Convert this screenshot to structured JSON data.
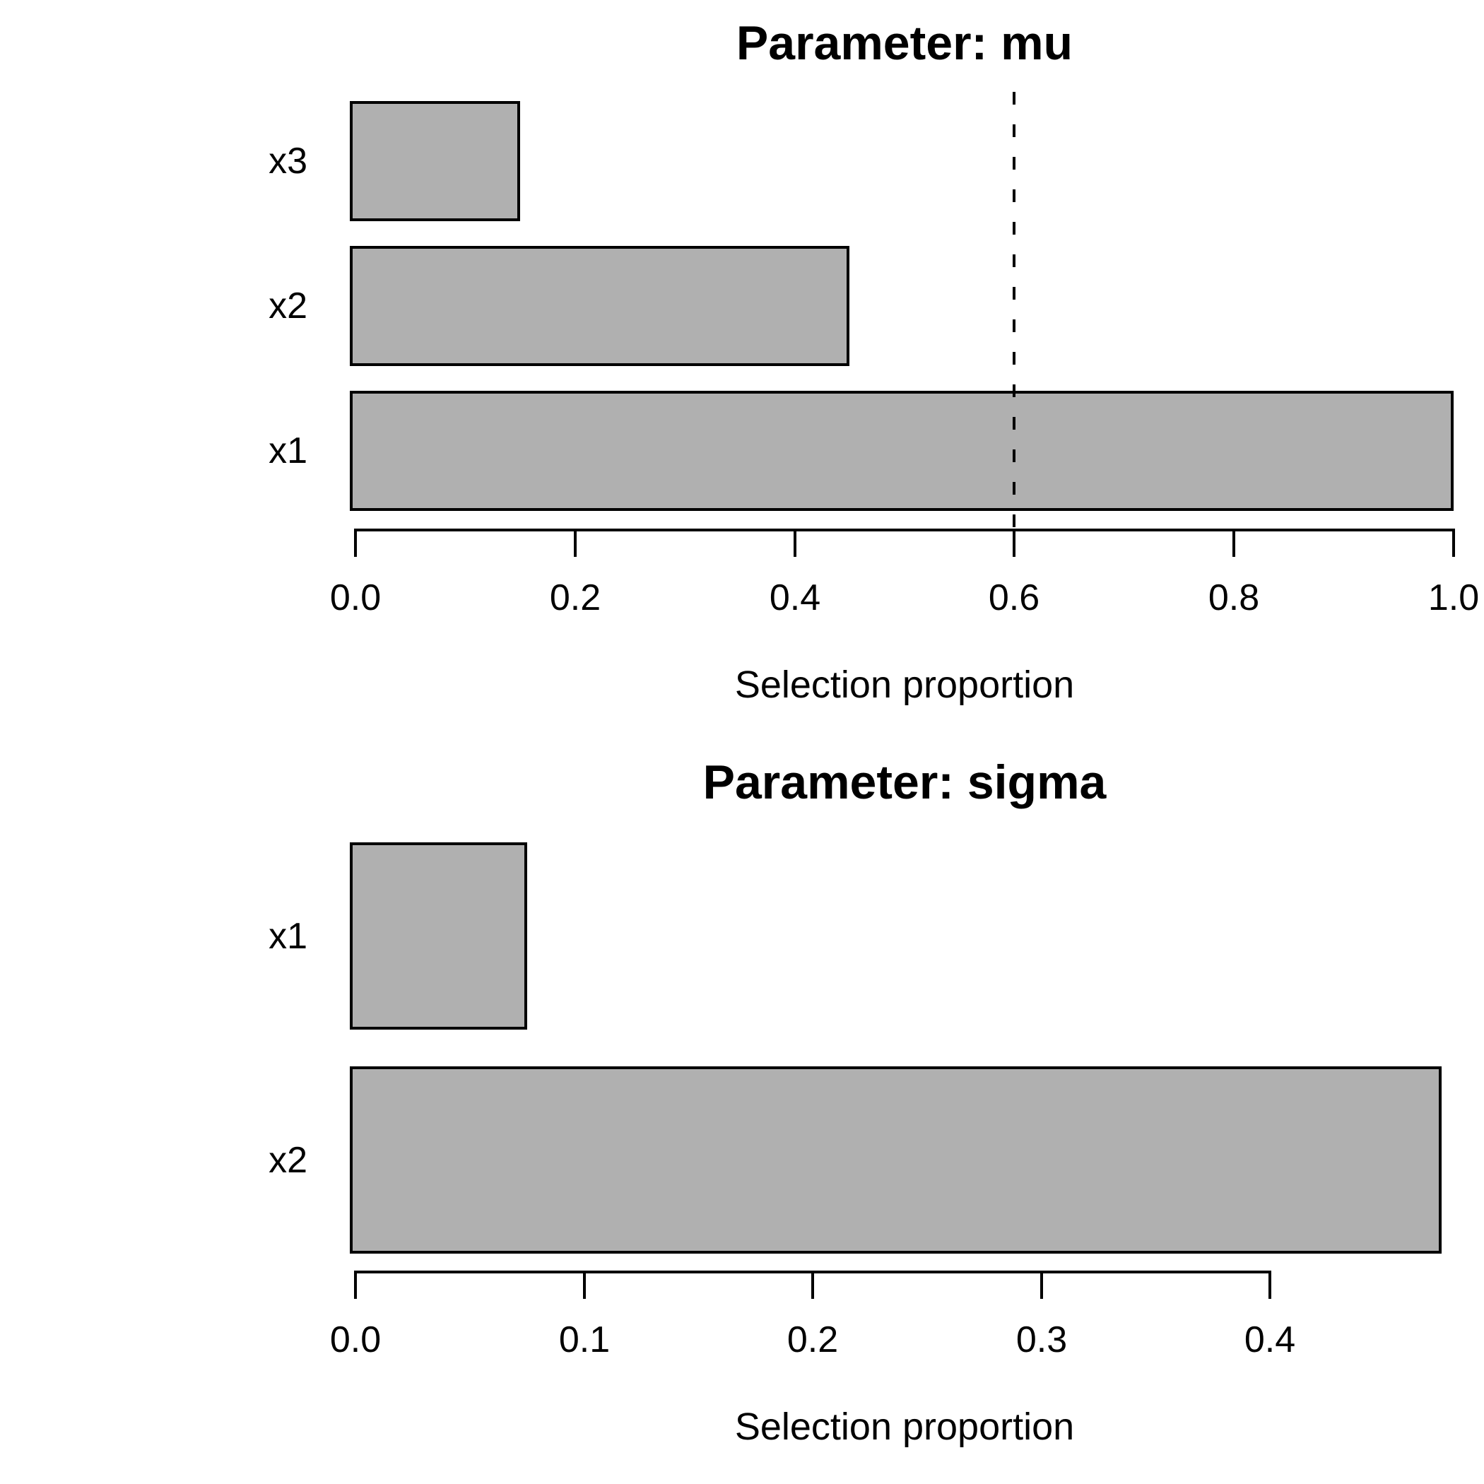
{
  "figure": {
    "background": "#ffffff",
    "text_color": "#000000"
  },
  "chart_data": [
    {
      "type": "bar",
      "orientation": "horizontal",
      "title": "Parameter: mu",
      "xlabel": "Selection proportion",
      "categories": [
        "x3",
        "x2",
        "x1"
      ],
      "values": [
        0.15,
        0.45,
        1.0
      ],
      "xticks": [
        0.0,
        0.2,
        0.4,
        0.6,
        0.8,
        1.0
      ],
      "xtick_labels": [
        "0.0",
        "0.2",
        "0.4",
        "0.6",
        "0.8",
        "1.0"
      ],
      "xlim": [
        0,
        1.0
      ],
      "grid": false,
      "legend": false,
      "annotations": [
        {
          "type": "vline",
          "x": 0.6,
          "style": "dashed",
          "color": "#000000"
        }
      ],
      "bar_fill": "#b0b0b0",
      "bar_border": "#000000"
    },
    {
      "type": "bar",
      "orientation": "horizontal",
      "title": "Parameter: sigma",
      "xlabel": "Selection proportion",
      "categories": [
        "x1",
        "x2"
      ],
      "values": [
        0.075,
        0.475
      ],
      "xticks": [
        0.0,
        0.1,
        0.2,
        0.3,
        0.4
      ],
      "xtick_labels": [
        "0.0",
        "0.1",
        "0.2",
        "0.3",
        "0.4"
      ],
      "xlim": [
        0,
        0.48
      ],
      "grid": false,
      "legend": false,
      "annotations": [],
      "bar_fill": "#b0b0b0",
      "bar_border": "#000000"
    }
  ]
}
